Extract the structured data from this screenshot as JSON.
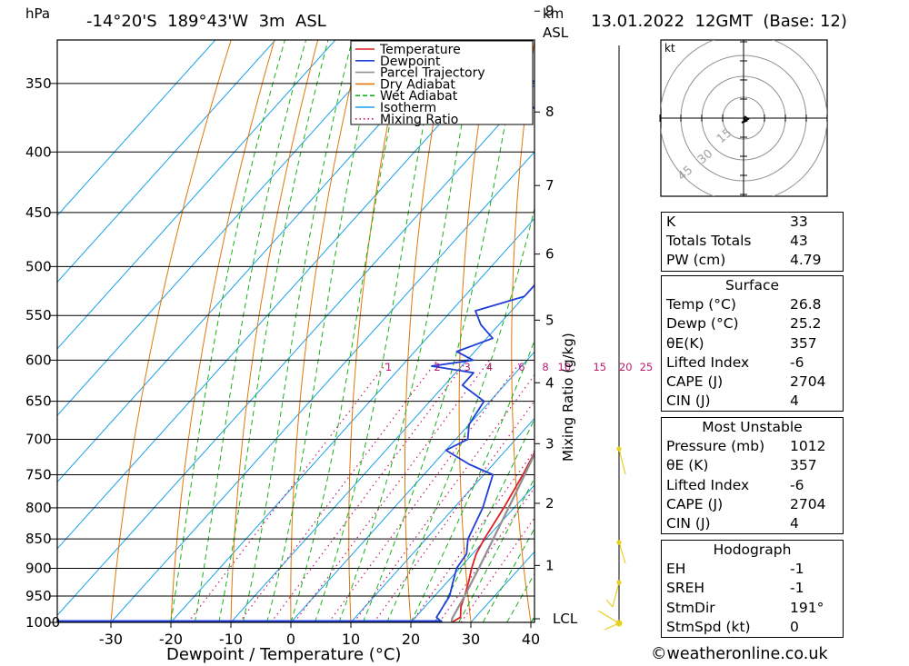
{
  "header": {
    "pressure_unit": "hPa",
    "location": "-14°20'S  189°43'W  3m  ASL",
    "height_unit": "km",
    "height_unit_2": "ASL",
    "datetime": "13.01.2022  12GMT  (Base: 12)"
  },
  "chart_data": {
    "type": "line",
    "xlabel": "Dewpoint / Temperature (°C)",
    "y_right_label": "Mixing Ratio (g/kg)",
    "x_ticks": [
      -30,
      -20,
      -10,
      0,
      10,
      20,
      30,
      40
    ],
    "pressure_ticks": [
      350,
      400,
      450,
      500,
      550,
      600,
      650,
      700,
      750,
      800,
      850,
      900,
      950,
      1000
    ],
    "km_ticks": [
      {
        "label": "9",
        "p": 304
      },
      {
        "label": "8",
        "p": 370
      },
      {
        "label": "7",
        "p": 427
      },
      {
        "label": "6",
        "p": 488
      },
      {
        "label": "5",
        "p": 555
      },
      {
        "label": "4",
        "p": 627
      },
      {
        "label": "3",
        "p": 706
      },
      {
        "label": "2",
        "p": 793
      },
      {
        "label": "1",
        "p": 895
      },
      {
        "label": "LCL",
        "p": 993
      }
    ],
    "mixing_ratio_labels": [
      "1",
      "2",
      "3",
      "4",
      "6",
      "8",
      "10",
      "15",
      "20",
      "25"
    ],
    "legend": {
      "placement": "top-right",
      "entries": [
        {
          "name": "Temperature",
          "color": "#e02020"
        },
        {
          "name": "Dewpoint",
          "color": "#1f3fd8"
        },
        {
          "name": "Parcel Trajectory",
          "color": "#909090"
        },
        {
          "name": "Dry Adiabat",
          "color": "#e0760a"
        },
        {
          "name": "Wet Adiabat",
          "color": "#18b018"
        },
        {
          "name": "Isotherm",
          "color": "#1aa0e8"
        },
        {
          "name": "Mixing Ratio",
          "color": "#c01870"
        }
      ]
    },
    "series": [
      {
        "name": "Temperature",
        "points": [
          [
            1000,
            26.8
          ],
          [
            990,
            27.5
          ],
          [
            970,
            26
          ],
          [
            950,
            25
          ],
          [
            925,
            23.6
          ],
          [
            900,
            22
          ],
          [
            875,
            20.6
          ],
          [
            850,
            19.7
          ],
          [
            800,
            18.3
          ],
          [
            750,
            16.5
          ],
          [
            700,
            14.3
          ],
          [
            650,
            12
          ],
          [
            620,
            10.5
          ],
          [
            600,
            9.5
          ],
          [
            550,
            6.5
          ],
          [
            500,
            3
          ],
          [
            470,
            -0.5
          ],
          [
            450,
            -2.2
          ],
          [
            420,
            -5.5
          ],
          [
            400,
            -8.7
          ],
          [
            380,
            -11.5
          ],
          [
            360,
            -14.5
          ],
          [
            340,
            -17.6
          ],
          [
            300,
            -22
          ],
          [
            250,
            -29
          ],
          [
            225,
            -33
          ]
        ]
      },
      {
        "name": "Dewpoint",
        "points": [
          [
            1000,
            25.2
          ],
          [
            990,
            23.5
          ],
          [
            970,
            23
          ],
          [
            950,
            22.5
          ],
          [
            925,
            21
          ],
          [
            900,
            19.5
          ],
          [
            875,
            19
          ],
          [
            850,
            17
          ],
          [
            800,
            14.8
          ],
          [
            750,
            11.5
          ],
          [
            735,
            6
          ],
          [
            715,
            0
          ],
          [
            700,
            2
          ],
          [
            680,
            0
          ],
          [
            650,
            -1
          ],
          [
            630,
            -7
          ],
          [
            615,
            -7
          ],
          [
            607,
            -15
          ],
          [
            600,
            -9
          ],
          [
            590,
            -13
          ],
          [
            575,
            -9
          ],
          [
            560,
            -13
          ],
          [
            545,
            -16
          ],
          [
            530,
            -10
          ],
          [
            515,
            -10
          ],
          [
            500,
            -6
          ],
          [
            490,
            -7.5
          ],
          [
            470,
            -14
          ],
          [
            450,
            -19
          ],
          [
            430,
            -18
          ],
          [
            410,
            -28
          ],
          [
            390,
            -29
          ],
          [
            375,
            -32
          ],
          [
            360,
            -41
          ],
          [
            350,
            -43
          ],
          [
            330,
            -14
          ],
          [
            310,
            -30
          ],
          [
            293,
            -49
          ],
          [
            280,
            -36
          ],
          [
            270,
            -39
          ]
        ]
      },
      {
        "name": "Parcel Trajectory",
        "points": [
          [
            1000,
            26.8
          ],
          [
            993,
            26.3
          ],
          [
            950,
            25
          ],
          [
            900,
            23.2
          ],
          [
            850,
            21.2
          ],
          [
            800,
            19.1
          ],
          [
            750,
            16.8
          ],
          [
            700,
            14.3
          ],
          [
            650,
            11.5
          ],
          [
            600,
            8.4
          ],
          [
            550,
            4.8
          ],
          [
            500,
            0.8
          ],
          [
            450,
            -4
          ],
          [
            400,
            -10
          ],
          [
            350,
            -17.5
          ],
          [
            300,
            -27
          ],
          [
            255,
            -35
          ]
        ]
      }
    ]
  },
  "hodograph": {
    "unit": "kt",
    "ring_labels": [
      "15",
      "30",
      "45"
    ]
  },
  "indices": {
    "rows": [
      {
        "label": "K",
        "value": "33"
      },
      {
        "label": "Totals Totals",
        "value": "43"
      },
      {
        "label": "PW (cm)",
        "value": "4.79"
      }
    ],
    "surface": {
      "title": "Surface",
      "rows": [
        {
          "label": "Temp (°C)",
          "value": "26.8"
        },
        {
          "label": "Dewp (°C)",
          "value": "25.2"
        },
        {
          "label": "θE(K)",
          "value": "357"
        },
        {
          "label": "Lifted Index",
          "value": "-6"
        },
        {
          "label": "CAPE (J)",
          "value": "2704"
        },
        {
          "label": "CIN (J)",
          "value": "4"
        }
      ]
    },
    "most_unstable": {
      "title": "Most Unstable",
      "rows": [
        {
          "label": "Pressure (mb)",
          "value": "1012"
        },
        {
          "label": "θE (K)",
          "value": "357"
        },
        {
          "label": "Lifted Index",
          "value": "-6"
        },
        {
          "label": "CAPE (J)",
          "value": "2704"
        },
        {
          "label": "CIN (J)",
          "value": "4"
        }
      ]
    },
    "hodograph_box": {
      "title": "Hodograph",
      "rows": [
        {
          "label": "EH",
          "value": "-1"
        },
        {
          "label": "SREH",
          "value": "-1"
        },
        {
          "label": "StmDir",
          "value": "191°"
        },
        {
          "label": "StmSpd (kt)",
          "value": "0"
        }
      ]
    }
  },
  "credit": "©weatheronline.co.uk"
}
